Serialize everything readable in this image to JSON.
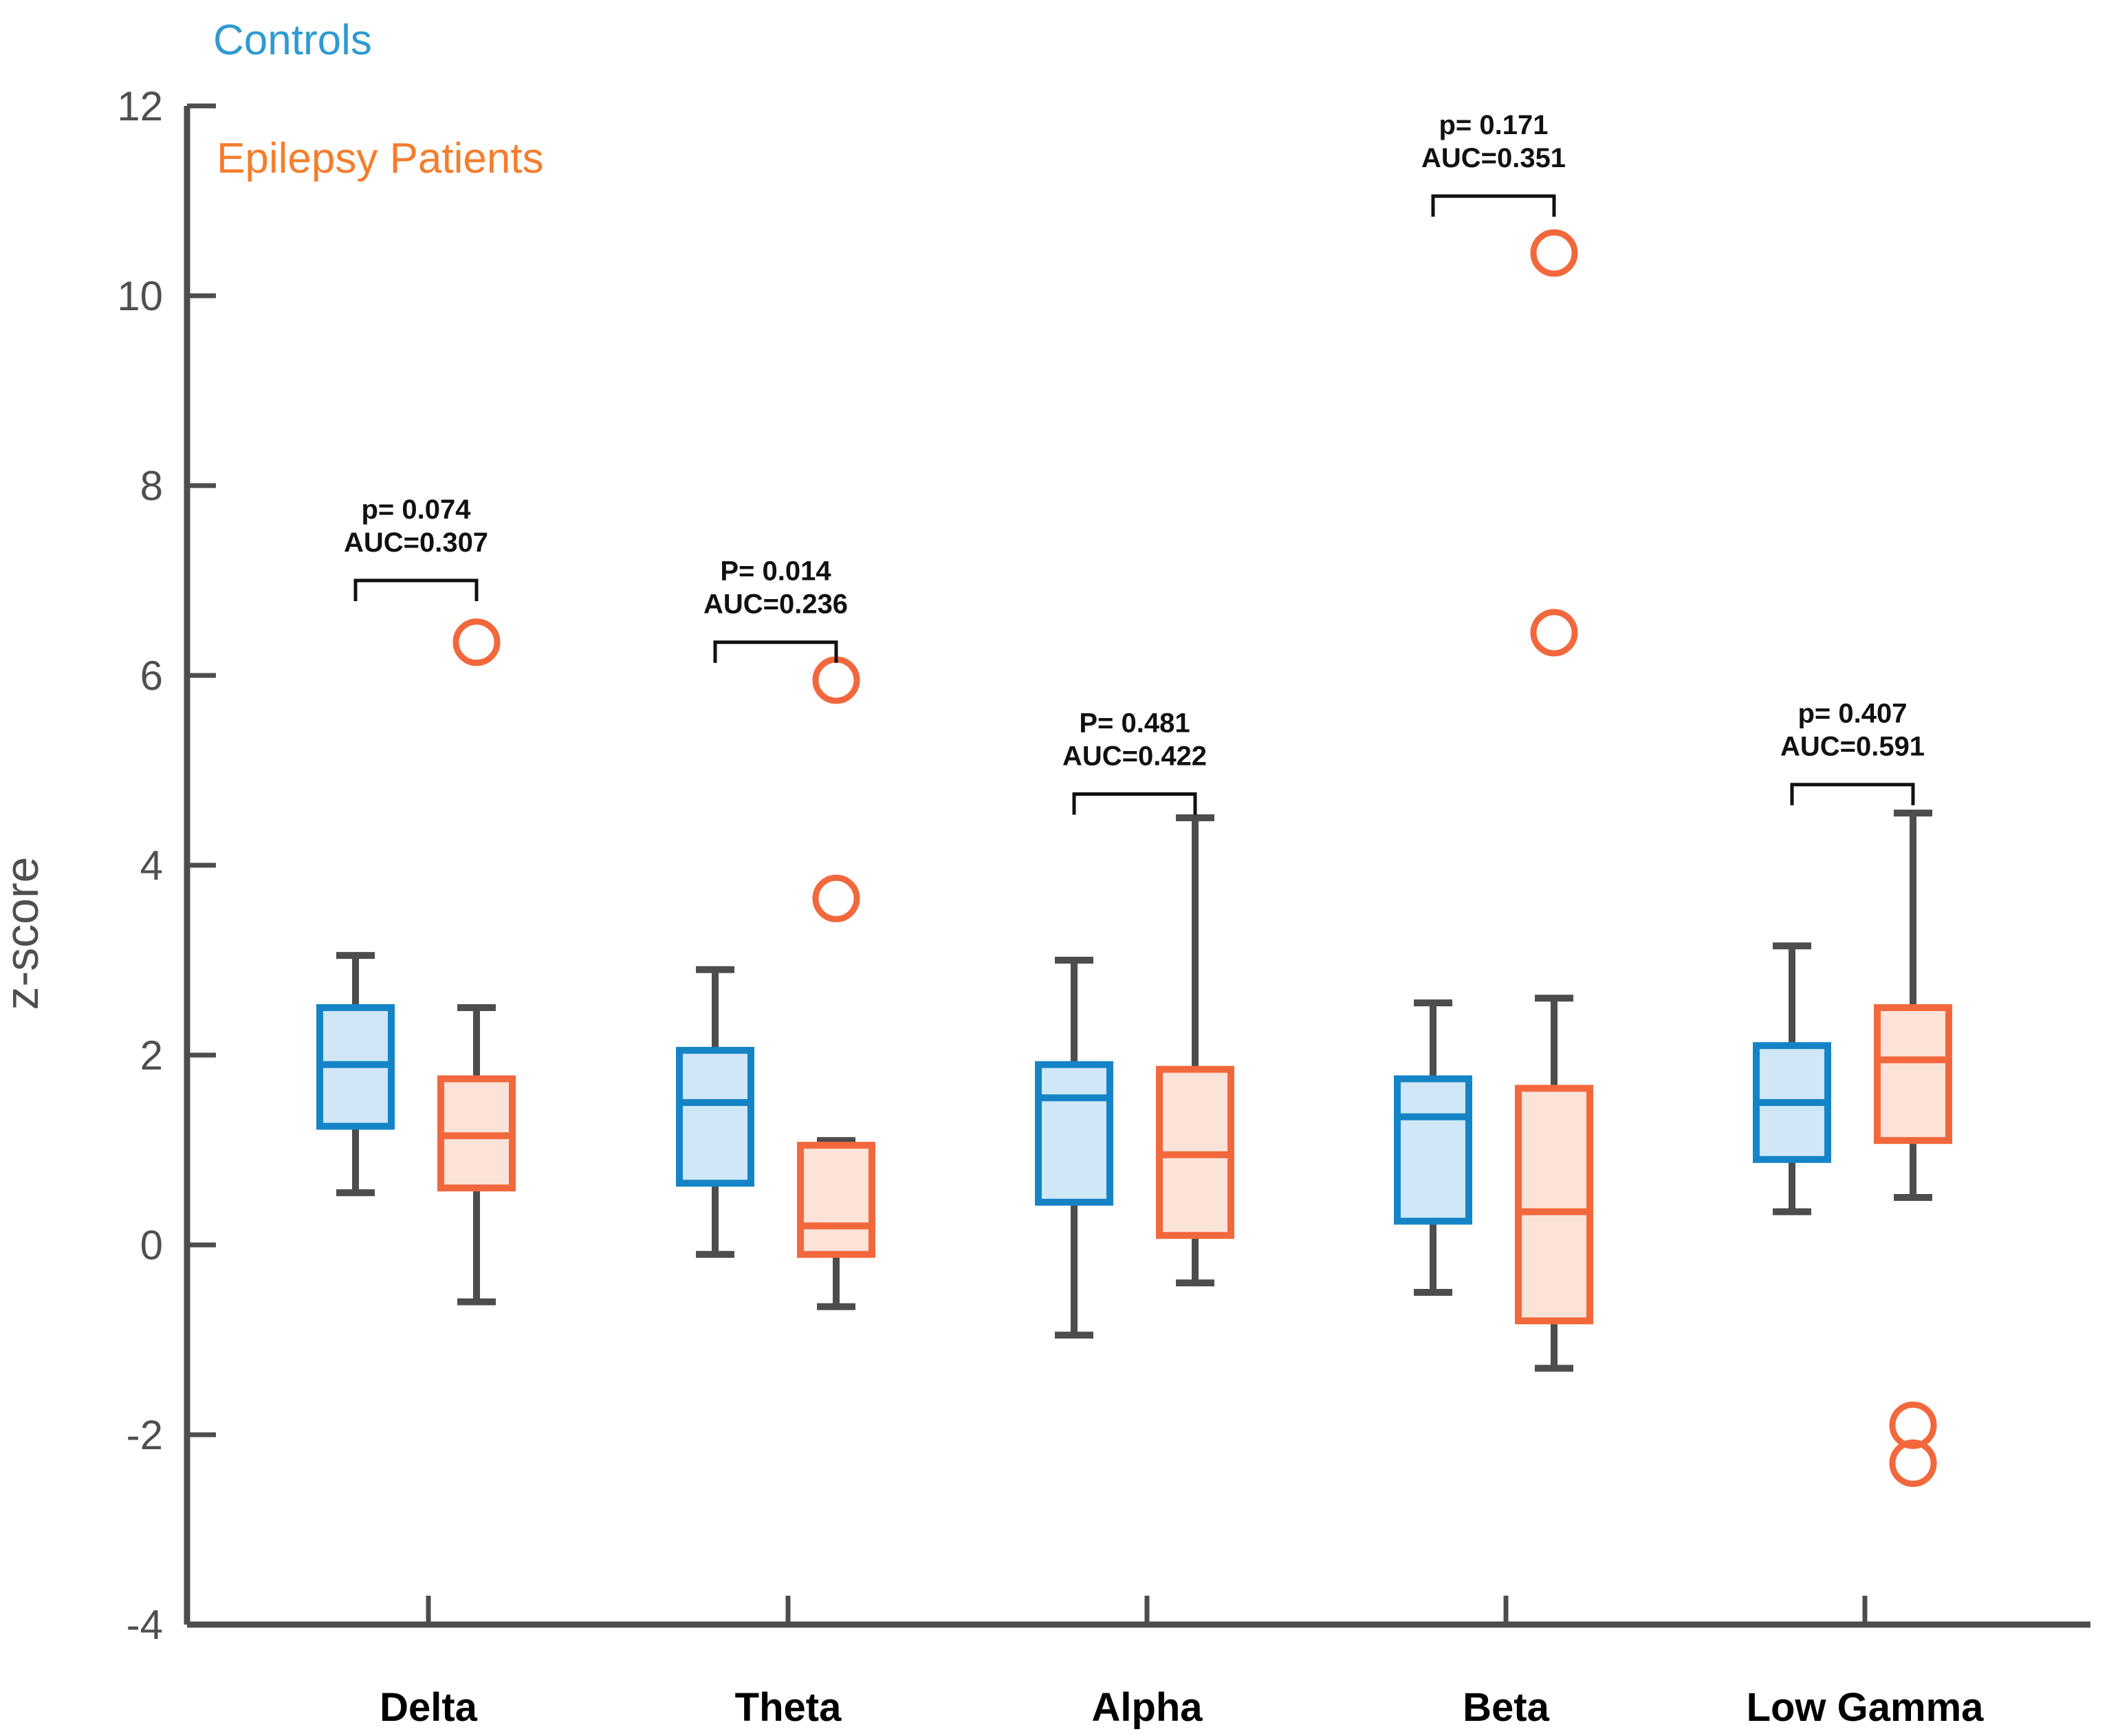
{
  "figure": {
    "background": "#ffffff",
    "axis_color": "#4d4d4d",
    "tick_label_color": "#4f4f4f",
    "category_label_color": "#000000",
    "whisker_color": "#4d4d4d",
    "bracket_color": "#111111",
    "ylabel": "z-score"
  },
  "chart_data": {
    "type": "boxplot",
    "title": "",
    "xlabel": "",
    "ylabel": "z-score",
    "ylim": [
      -4,
      12
    ],
    "yticks": [
      12,
      10,
      8,
      6,
      4,
      2,
      0,
      -2,
      -4
    ],
    "grid": false,
    "legend_position": "top-left",
    "categories": [
      "Delta",
      "Theta",
      "Alpha",
      "Beta",
      "Low Gamma"
    ],
    "series": [
      {
        "name": "Controls",
        "edge_color": "#1584c6",
        "fill_color": "#cfe7f6",
        "legend_color": "#2e9ad2",
        "boxes": [
          {
            "whislo": 0.55,
            "q1": 1.25,
            "med": 1.9,
            "q3": 2.5,
            "whishi": 3.05,
            "outliers": []
          },
          {
            "whislo": -0.1,
            "q1": 0.65,
            "med": 1.5,
            "q3": 2.05,
            "whishi": 2.9,
            "outliers": []
          },
          {
            "whislo": -0.95,
            "q1": 0.45,
            "med": 1.55,
            "q3": 1.9,
            "whishi": 3.0,
            "outliers": []
          },
          {
            "whislo": -0.5,
            "q1": 0.25,
            "med": 1.35,
            "q3": 1.75,
            "whishi": 2.55,
            "outliers": []
          },
          {
            "whislo": 0.35,
            "q1": 0.9,
            "med": 1.5,
            "q3": 2.1,
            "whishi": 3.15,
            "outliers": []
          }
        ]
      },
      {
        "name": "Epilepsy Patients",
        "edge_color": "#f2683c",
        "fill_color": "#fce3d8",
        "legend_color": "#f57d2c",
        "boxes": [
          {
            "whislo": -0.6,
            "q1": 0.6,
            "med": 1.15,
            "q3": 1.75,
            "whishi": 2.5,
            "outliers": [
              6.35
            ]
          },
          {
            "whislo": -0.65,
            "q1": -0.1,
            "med": 0.2,
            "q3": 1.05,
            "whishi": 1.1,
            "outliers": [
              5.95,
              3.65
            ]
          },
          {
            "whislo": -0.4,
            "q1": 0.1,
            "med": 0.95,
            "q3": 1.85,
            "whishi": 4.5,
            "outliers": []
          },
          {
            "whislo": -1.3,
            "q1": -0.8,
            "med": 0.35,
            "q3": 1.65,
            "whishi": 2.6,
            "outliers": [
              10.45,
              6.45
            ]
          },
          {
            "whislo": 0.5,
            "q1": 1.1,
            "med": 1.95,
            "q3": 2.5,
            "whishi": 4.55,
            "outliers": [
              -1.9,
              -2.3
            ]
          }
        ]
      }
    ],
    "annotations": [
      {
        "group": "Delta",
        "p_label": "p= 0.074",
        "auc_label": "AUC=0.307",
        "bracket_y": 7.0
      },
      {
        "group": "Theta",
        "p_label": "P= 0.014",
        "auc_label": "AUC=0.236",
        "bracket_y": 6.35
      },
      {
        "group": "Alpha",
        "p_label": "P= 0.481",
        "auc_label": "AUC=0.422",
        "bracket_y": 4.75
      },
      {
        "group": "Beta",
        "p_label": "p= 0.171",
        "auc_label": "AUC=0.351",
        "bracket_y": 11.05
      },
      {
        "group": "Low Gamma",
        "p_label": "p= 0.407",
        "auc_label": "AUC=0.591",
        "bracket_y": 4.85
      }
    ]
  }
}
